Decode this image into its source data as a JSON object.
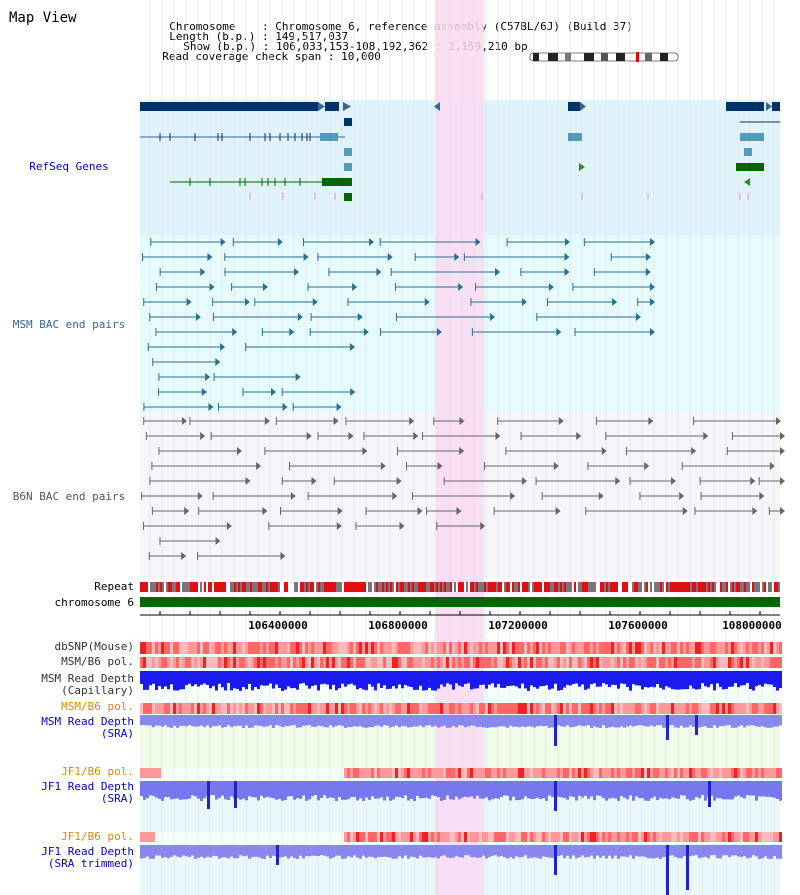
{
  "title": "Map View",
  "header": {
    "chromosome_label": "Chromosome",
    "chromosome_value": "Chromosome 6, reference assembly (C57BL/6J) (Build 37)",
    "length_label": "Length (b.p.)",
    "length_value": "149,517,037",
    "show_label": "Show (b.p.)",
    "show_value": "106,033,153-108,192,362 : 2,159,210 bp",
    "coverage_label": "Read coverage check span",
    "coverage_value": "10,000"
  },
  "tracks": {
    "refseq": "RefSeq Genes",
    "msm_bac": "MSM BAC end pairs",
    "b6n_bac": "B6N BAC end pairs",
    "repeat": "Repeat",
    "chromosome": "chromosome 6",
    "dbsnp": "dbSNP(Mouse)",
    "msm_pol": "MSM/B6 pol.",
    "msm_depth_cap_1": "MSM Read Depth",
    "msm_depth_cap_2": "(Capillary)",
    "msm_pol2": "MSM/B6 pol.",
    "msm_depth_sra_1": "MSM Read Depth",
    "msm_depth_sra_2": "(SRA)",
    "jf1_pol": "JF1/B6 pol.",
    "jf1_depth_sra_1": "JF1 Read Depth",
    "jf1_depth_sra_2": "(SRA)",
    "jf1_pol2": "JF1/B6 pol.",
    "jf1_depth_trim_1": "JF1 Read Depth",
    "jf1_depth_trim_2": "(SRA trimmed)"
  },
  "axis": {
    "ticks": [
      "106400000",
      "106800000",
      "107200000",
      "107600000",
      "108000000"
    ]
  },
  "colors": {
    "refseq_bg": "#e0f3fa",
    "refseq_label": "#0000cc",
    "msm_label": "#336699",
    "b6n_label": "#555555",
    "highlight": "#f9d9f2",
    "chromosome_bar": "#006600",
    "depth_blue": "#0000ee",
    "pol_orange": "#dd8800"
  }
}
